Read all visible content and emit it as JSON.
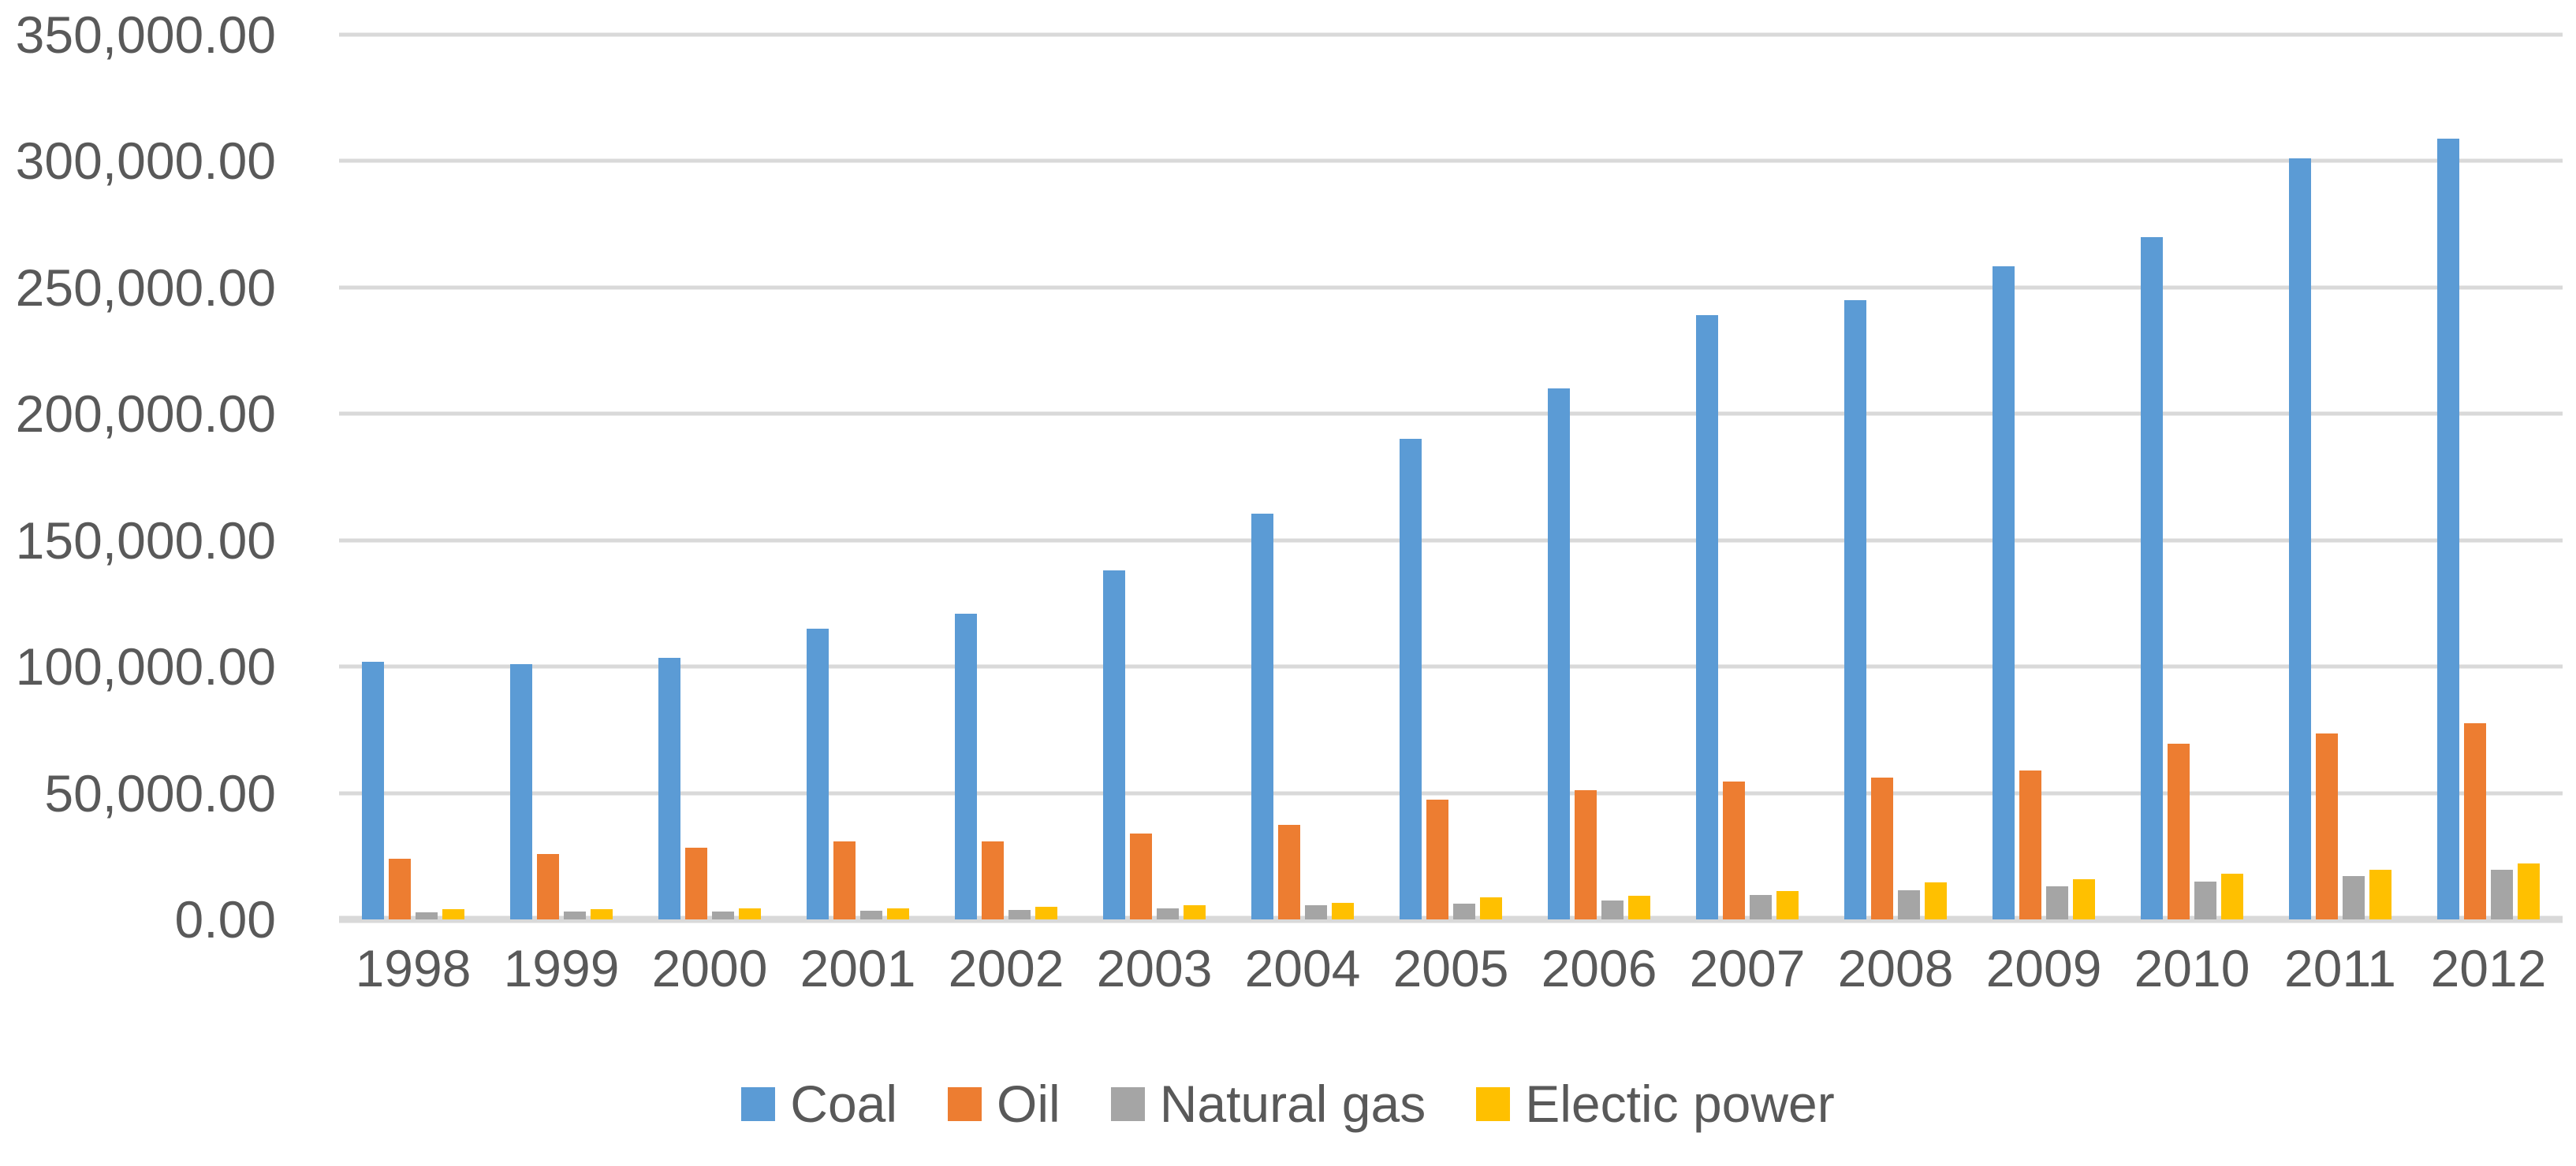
{
  "chart_data": {
    "type": "bar",
    "title": "",
    "xlabel": "",
    "ylabel": "",
    "categories": [
      "1998",
      "1999",
      "2000",
      "2001",
      "2002",
      "2003",
      "2004",
      "2005",
      "2006",
      "2007",
      "2008",
      "2009",
      "2010",
      "2011",
      "2012"
    ],
    "series": [
      {
        "name": "Coal",
        "color": "#5B9BD5",
        "values": [
          102000,
          101000,
          103500,
          115000,
          121000,
          138000,
          160500,
          190000,
          210000,
          239000,
          245000,
          258500,
          270000,
          301000,
          309000
        ]
      },
      {
        "name": "Oil",
        "color": "#ED7D31",
        "values": [
          24000,
          26000,
          28500,
          31000,
          31000,
          34000,
          37500,
          47500,
          51000,
          54500,
          56000,
          59000,
          69500,
          73500,
          77500
        ]
      },
      {
        "name": "Natural gas",
        "color": "#A5A5A5",
        "values": [
          2800,
          3000,
          3200,
          3500,
          3900,
          4500,
          5500,
          6100,
          7600,
          9600,
          11500,
          13000,
          15000,
          17000,
          19500
        ]
      },
      {
        "name": "Electic power",
        "color": "#FFC000",
        "values": [
          4000,
          4200,
          4400,
          4500,
          5000,
          5500,
          6700,
          8600,
          9400,
          11200,
          14500,
          16000,
          18000,
          19500,
          22000
        ]
      }
    ],
    "ylim": [
      0,
      350000
    ],
    "ytick_step": 50000,
    "ytick_labels_top_to_bottom": [
      "350,000.00",
      "300,000.00",
      "250,000.00",
      "200,000.00",
      "150,000.00",
      "100,000.00",
      "50,000.00",
      "0.00"
    ],
    "grid": true,
    "gridline_color": "#D9D9D9",
    "text_color": "#595959",
    "legend_position": "bottom"
  }
}
